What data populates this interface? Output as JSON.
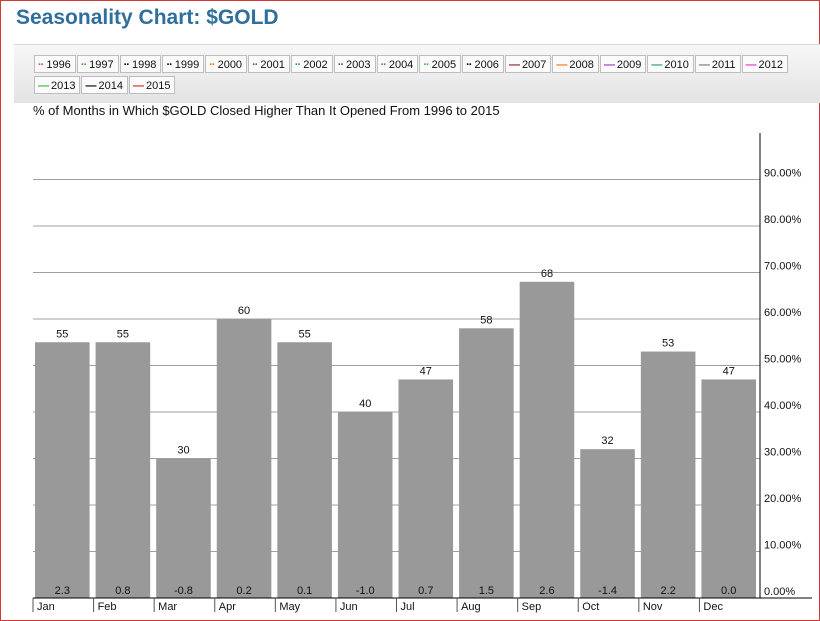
{
  "title": "Seasonality Chart: $GOLD",
  "subtitle": "% of Months in Which $GOLD Closed Higher Than It Opened From 1996 to 2015",
  "legend": [
    {
      "label": "1996",
      "color": "#cc33cc",
      "style": "dotted"
    },
    {
      "label": "1997",
      "color": "#33aa33",
      "style": "dotted"
    },
    {
      "label": "1998",
      "color": "#000000",
      "style": "dotted"
    },
    {
      "label": "1999",
      "color": "#000000",
      "style": "dotted"
    },
    {
      "label": "2000",
      "color": "#dd7700",
      "style": "dotted"
    },
    {
      "label": "2001",
      "color": "#993399",
      "style": "dotted"
    },
    {
      "label": "2002",
      "color": "#229988",
      "style": "dotted"
    },
    {
      "label": "2003",
      "color": "#555555",
      "style": "dotted"
    },
    {
      "label": "2004",
      "color": "#cc33cc",
      "style": "dotted"
    },
    {
      "label": "2005",
      "color": "#33bb33",
      "style": "dotted"
    },
    {
      "label": "2006",
      "color": "#000000",
      "style": "dotted"
    },
    {
      "label": "2007",
      "color": "#882222",
      "style": "solid"
    },
    {
      "label": "2008",
      "color": "#ee7711",
      "style": "solid"
    },
    {
      "label": "2009",
      "color": "#9933cc",
      "style": "solid"
    },
    {
      "label": "2010",
      "color": "#229988",
      "style": "solid"
    },
    {
      "label": "2011",
      "color": "#777777",
      "style": "solid"
    },
    {
      "label": "2012",
      "color": "#dd33cc",
      "style": "solid"
    },
    {
      "label": "2013",
      "color": "#33bb33",
      "style": "solid"
    },
    {
      "label": "2014",
      "color": "#000000",
      "style": "solid"
    },
    {
      "label": "2015",
      "color": "#dd2222",
      "style": "solid"
    }
  ],
  "chart_data": {
    "type": "bar",
    "categories": [
      "Jan",
      "Feb",
      "Mar",
      "Apr",
      "May",
      "Jun",
      "Jul",
      "Aug",
      "Sep",
      "Oct",
      "Nov",
      "Dec"
    ],
    "values": [
      55,
      55,
      30,
      60,
      55,
      40,
      47,
      58,
      68,
      32,
      53,
      47
    ],
    "avg_change": [
      "2.3",
      "0.8",
      "-0.8",
      "0.2",
      "0.1",
      "-1.0",
      "0.7",
      "1.5",
      "2.6",
      "-1.4",
      "2.2",
      "0.0"
    ],
    "ylim": [
      0,
      100
    ],
    "yticks": [
      "0.00%",
      "10.00%",
      "20.00%",
      "30.00%",
      "40.00%",
      "50.00%",
      "60.00%",
      "70.00%",
      "80.00%",
      "90.00%"
    ],
    "bar_color": "#999999",
    "grid": true
  }
}
